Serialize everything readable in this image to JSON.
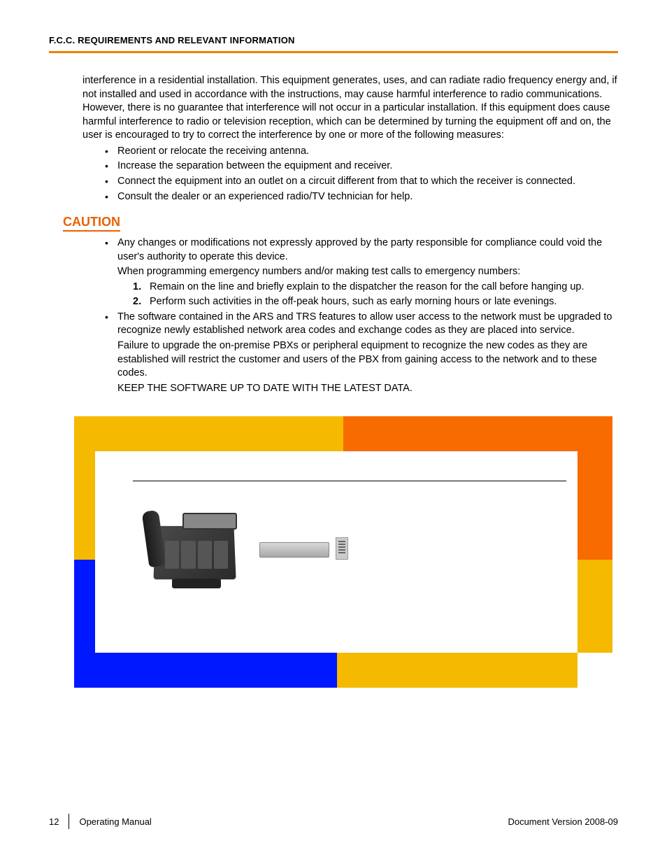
{
  "header": {
    "title": "F.C.C. REQUIREMENTS AND RELEVANT INFORMATION",
    "rule_color": "#f08000"
  },
  "intro_paragraph": "interference in a residential installation. This equipment generates, uses, and can radiate radio frequency energy and, if not installed and used in accordance with the instructions, may cause harmful interference to radio communications. However, there is no guarantee that interference will not occur in a particular installation. If this equipment does cause harmful interference to radio or television reception, which can be determined by turning the equipment off and on, the user is encouraged to try to correct the interference by one or more of the following measures:",
  "measures": [
    "Reorient or relocate the receiving antenna.",
    "Increase the separation between the equipment and receiver.",
    "Connect the equipment into an outlet on a circuit different from that to which the receiver is connected.",
    "Consult the dealer or an experienced radio/TV technician for help."
  ],
  "caution": {
    "heading": "CAUTION",
    "heading_color": "#e86100",
    "items": [
      {
        "text": "Any changes or modifications not expressly approved by the party responsible for compliance could void the user's authority to operate this device.",
        "sub_intro": "When programming emergency numbers and/or making test calls to emergency numbers:",
        "numbered": [
          "Remain on the line and briefly explain to the dispatcher the reason for the call before hanging up.",
          "Perform such activities in the off-peak hours, such as early morning hours or late evenings."
        ]
      },
      {
        "text": "The software contained in the ARS and TRS features to allow user access to the network must be upgraded to recognize newly established network area codes and exchange codes as they are placed into service.",
        "para2": "Failure to upgrade the on-premise PBXs or peripheral equipment to recognize the new codes as they are established will restrict the customer and users of the PBX from gaining access to the network and to these codes.",
        "para3": "KEEP THE SOFTWARE UP TO DATE WITH THE LATEST DATA."
      }
    ]
  },
  "ad_colors": {
    "yellow": "#f5b900",
    "orange": "#f76b00",
    "blue": "#0018ff",
    "white": "#ffffff"
  },
  "footer": {
    "page_number": "12",
    "doc_title": "Operating Manual",
    "version_label": "Document Version  2008-09"
  }
}
